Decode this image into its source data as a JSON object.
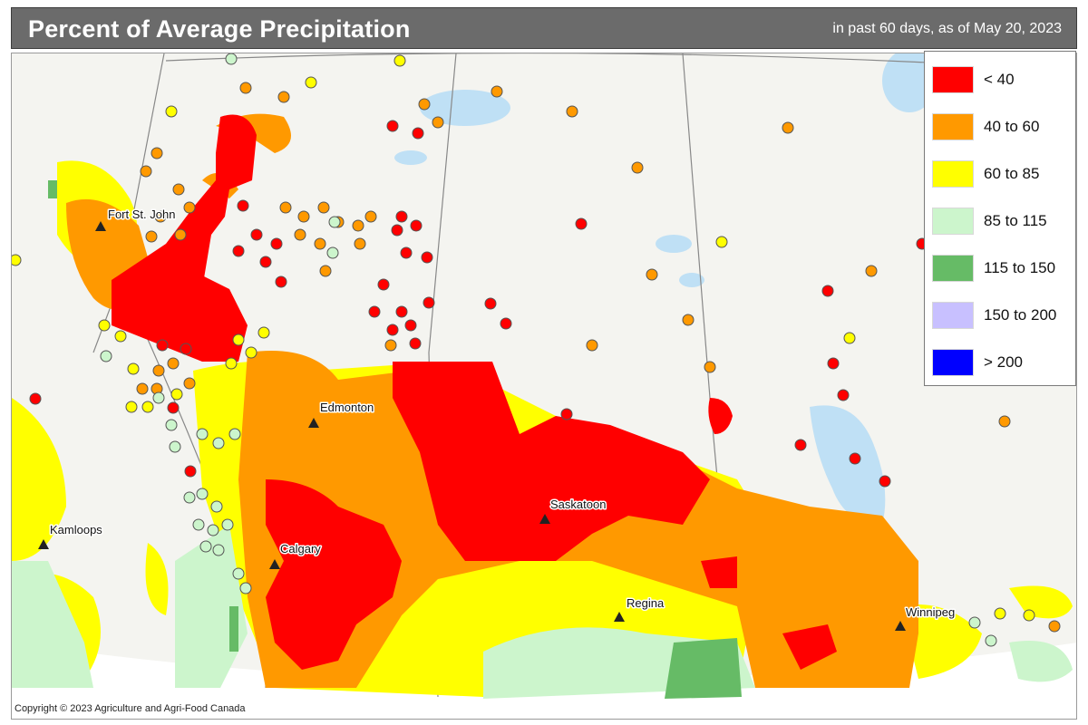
{
  "header": {
    "title": "Percent of Average Precipitation",
    "subtitle": "in past 60 days, as of May 20, 2023"
  },
  "legend": [
    {
      "label": "< 40",
      "color": "#ff0000"
    },
    {
      "label": "40 to 60",
      "color": "#ff9900"
    },
    {
      "label": "60 to 85",
      "color": "#ffff00"
    },
    {
      "label": "85 to 115",
      "color": "#ccf5cc"
    },
    {
      "label": "115 to 150",
      "color": "#66bb66"
    },
    {
      "label": "150 to 200",
      "color": "#c8c0ff"
    },
    {
      "label": "> 200",
      "color": "#0000ff"
    }
  ],
  "cities": [
    {
      "name": "Fort St. John"
    },
    {
      "name": "Edmonton"
    },
    {
      "name": "Kamloops"
    },
    {
      "name": "Calgary"
    },
    {
      "name": "Saskatoon"
    },
    {
      "name": "Regina"
    },
    {
      "name": "Winnipeg"
    }
  ],
  "footer": {
    "copyright": "Copyright © 2023 Agriculture and Agri-Food Canada"
  }
}
